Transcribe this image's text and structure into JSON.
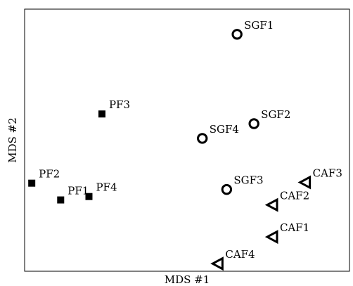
{
  "chart_data": {
    "type": "scatter",
    "title": "",
    "xlabel": "MDS #1",
    "ylabel": "MDS #2",
    "xlim": [
      0,
      100
    ],
    "ylim": [
      0,
      100
    ],
    "grid": false,
    "legend": "none",
    "series": [
      {
        "marker": "square",
        "filled": true,
        "color": "#000000",
        "points": [
          {
            "label": "PF1",
            "x": 11.1,
            "y": 27.2
          },
          {
            "label": "PF2",
            "x": 2.2,
            "y": 33.6
          },
          {
            "label": "PF3",
            "x": 23.8,
            "y": 60.0
          },
          {
            "label": "PF4",
            "x": 19.8,
            "y": 28.5
          }
        ]
      },
      {
        "marker": "circle",
        "filled": false,
        "color": "#000000",
        "points": [
          {
            "label": "SGF1",
            "x": 65.4,
            "y": 90.4
          },
          {
            "label": "SGF2",
            "x": 70.6,
            "y": 56.3
          },
          {
            "label": "SGF3",
            "x": 62.2,
            "y": 31.2
          },
          {
            "label": "SGF4",
            "x": 54.7,
            "y": 50.7
          }
        ]
      },
      {
        "marker": "triangle-left",
        "filled": false,
        "color": "#000000",
        "points": [
          {
            "label": "CAF1",
            "x": 76.4,
            "y": 13.1
          },
          {
            "label": "CAF2",
            "x": 76.4,
            "y": 25.3
          },
          {
            "label": "CAF3",
            "x": 86.5,
            "y": 33.9
          },
          {
            "label": "CAF4",
            "x": 59.6,
            "y": 2.9
          }
        ]
      }
    ]
  }
}
